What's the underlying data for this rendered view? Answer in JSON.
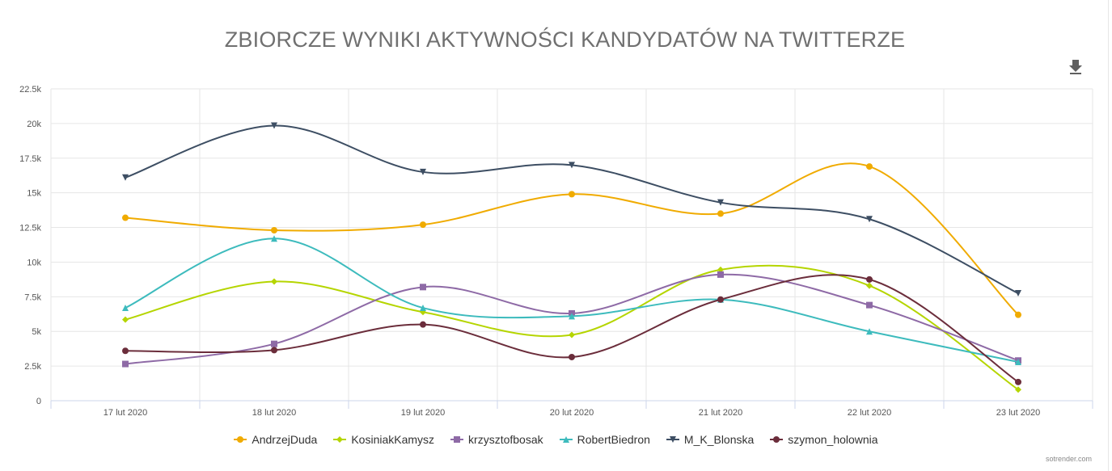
{
  "chart_data": {
    "type": "line",
    "title": "ZBIORCZE WYNIKI AKTYWNOŚCI KANDYDATÓW NA TWITTERZE",
    "categories": [
      "17 lut 2020",
      "18 lut 2020",
      "19 lut 2020",
      "20 lut 2020",
      "21 lut 2020",
      "22 lut 2020",
      "23 lut 2020"
    ],
    "y_ticks": [
      "0",
      "2.5k",
      "5k",
      "7.5k",
      "10k",
      "12.5k",
      "15k",
      "17.5k",
      "20k",
      "22.5k"
    ],
    "ylim": [
      0,
      22500
    ],
    "grid": true,
    "legend_position": "bottom",
    "series": [
      {
        "name": "AndrzejDuda",
        "color": "#f0ab00",
        "marker": "circle",
        "values": [
          13200,
          12300,
          12700,
          14900,
          13500,
          16900,
          6200
        ]
      },
      {
        "name": "KosiniakKamysz",
        "color": "#b5d500",
        "marker": "diamond",
        "values": [
          5850,
          8600,
          6400,
          4750,
          9450,
          8300,
          800
        ]
      },
      {
        "name": "krzysztofbosak",
        "color": "#8e6aa6",
        "marker": "square",
        "values": [
          2650,
          4100,
          8200,
          6300,
          9100,
          6900,
          2900
        ]
      },
      {
        "name": "RobertBiedron",
        "color": "#3dbbbd",
        "marker": "triangle",
        "values": [
          6700,
          11700,
          6700,
          6100,
          7300,
          5000,
          2800
        ]
      },
      {
        "name": "M_K_Blonska",
        "color": "#3d4e63",
        "marker": "triangle-down",
        "values": [
          16100,
          19850,
          16500,
          17000,
          14300,
          13100,
          7750
        ]
      },
      {
        "name": "szymon_holownia",
        "color": "#6b2d3b",
        "marker": "circle",
        "values": [
          3600,
          3650,
          5500,
          3150,
          7300,
          8750,
          1350
        ]
      }
    ]
  },
  "ui": {
    "download_icon": "download-icon",
    "credit": "sotrender.com"
  }
}
